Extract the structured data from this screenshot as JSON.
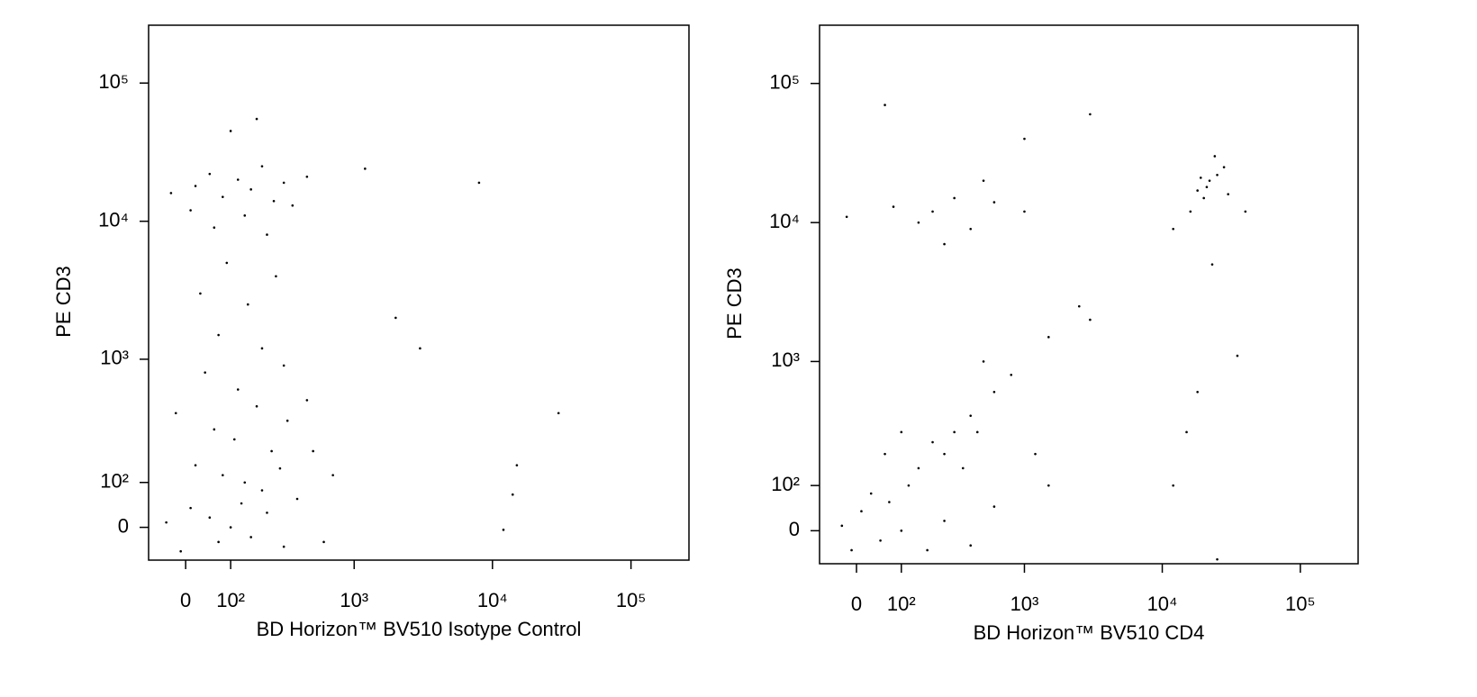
{
  "chart_data": [
    {
      "type": "scatter",
      "x_label": "BD Horizon™ BV510 Isotype Control",
      "y_label": "PE CD3",
      "color": "#000000",
      "scale": "biexponential",
      "xlim": [
        -80,
        262144
      ],
      "ylim": [
        -70,
        262144
      ],
      "xticks": [
        0,
        {
          "value": 100,
          "label": "10²"
        },
        {
          "value": 1000,
          "label": "10³"
        },
        {
          "value": 10000,
          "label": "10⁴"
        },
        {
          "value": 100000,
          "label": "10⁵"
        }
      ],
      "yticks": [
        0,
        {
          "value": 100,
          "label": "10²"
        },
        {
          "value": 1000,
          "label": "10³"
        },
        {
          "value": 10000,
          "label": "10⁴"
        },
        {
          "value": 100000,
          "label": "10⁵"
        }
      ],
      "x": [
        20,
        50,
        80,
        120,
        160,
        200,
        250,
        300,
        -30,
        10,
        60,
        140,
        220,
        350,
        450,
        1200,
        8000,
        100,
        180,
        90,
        30,
        150,
        260,
        70,
        200,
        40,
        120,
        300,
        -20,
        60,
        110,
        180,
        240,
        320,
        20,
        80,
        140,
        200,
        280,
        380,
        10,
        50,
        100,
        160,
        220,
        300,
        -40,
        -10,
        70,
        130,
        500,
        700,
        2000,
        3000,
        30000,
        14000,
        15000,
        12000,
        600,
        450
      ],
      "y": [
        18000,
        22000,
        15000,
        20000,
        17000,
        25000,
        14000,
        19000,
        16000,
        12000,
        9000,
        11000,
        8000,
        13000,
        21000,
        24000,
        19000,
        45000,
        55000,
        5000,
        3000,
        2500,
        4000,
        1500,
        1200,
        800,
        600,
        900,
        400,
        300,
        250,
        450,
        200,
        350,
        150,
        120,
        100,
        80,
        140,
        60,
        40,
        20,
        0,
        -20,
        30,
        -40,
        10,
        -50,
        -30,
        50,
        200,
        120,
        2000,
        1200,
        400,
        70,
        150,
        -5,
        -30,
        500
      ]
    },
    {
      "type": "scatter",
      "x_label": "BD Horizon™ BV510 CD4",
      "y_label": "PE CD3",
      "color": "#000000",
      "scale": "biexponential",
      "xlim": [
        -80,
        262144
      ],
      "ylim": [
        -70,
        262144
      ],
      "xticks": [
        0,
        {
          "value": 100,
          "label": "10²"
        },
        {
          "value": 1000,
          "label": "10³"
        },
        {
          "value": 10000,
          "label": "10⁴"
        },
        {
          "value": 100000,
          "label": "10⁵"
        }
      ],
      "yticks": [
        0,
        {
          "value": 100,
          "label": "10²"
        },
        {
          "value": 1000,
          "label": "10³"
        },
        {
          "value": 10000,
          "label": "10⁴"
        },
        {
          "value": 100000,
          "label": "10⁵"
        }
      ],
      "x": [
        22000,
        18000,
        25000,
        20000,
        28000,
        16000,
        24000,
        21000,
        19000,
        30000,
        12000,
        40000,
        23000,
        200,
        300,
        150,
        400,
        600,
        80,
        -20,
        500,
        250,
        1000,
        2500,
        3000,
        1500,
        800,
        600,
        500,
        400,
        300,
        250,
        200,
        150,
        120,
        350,
        450,
        100,
        60,
        30,
        10,
        50,
        100,
        180,
        250,
        -30,
        -10,
        70,
        400,
        600,
        1200,
        1500,
        15000,
        12000,
        25000,
        18000,
        35000,
        3000,
        60,
        1000
      ],
      "y": [
        20000,
        17000,
        22000,
        15000,
        25000,
        12000,
        30000,
        18000,
        21000,
        16000,
        9000,
        12000,
        5000,
        12000,
        15000,
        10000,
        9000,
        14000,
        13000,
        11000,
        20000,
        7000,
        12000,
        2500,
        2000,
        1500,
        800,
        600,
        1000,
        400,
        300,
        200,
        250,
        150,
        100,
        150,
        300,
        300,
        200,
        80,
        40,
        -20,
        0,
        -40,
        20,
        10,
        -40,
        60,
        -30,
        50,
        200,
        100,
        300,
        100,
        -60,
        600,
        1100,
        60000,
        70000,
        40000
      ]
    }
  ]
}
